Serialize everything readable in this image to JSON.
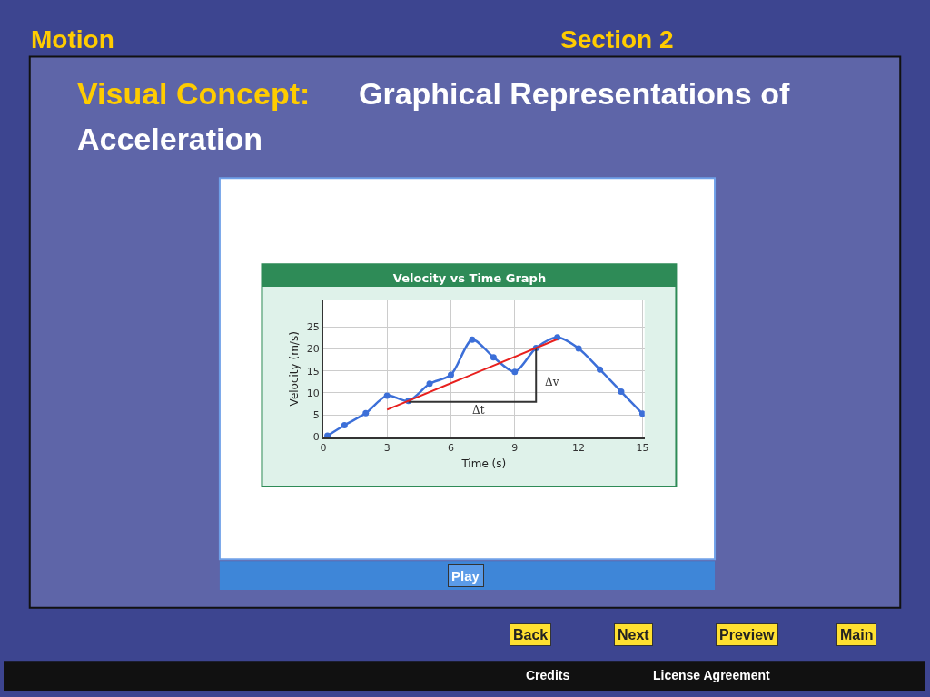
{
  "chart_data": {
    "type": "line",
    "title": "Velocity vs Time Graph",
    "xlabel": "Time (s)",
    "ylabel": "Velocity (m/s)",
    "xlim": [
      0,
      15.1
    ],
    "ylim": [
      0,
      31
    ],
    "xticks": [
      0,
      3,
      6,
      9,
      12,
      15
    ],
    "yticks": [
      0,
      5,
      10,
      15,
      20,
      25
    ],
    "grid": true,
    "series": [
      {
        "color": "#3c6fd8",
        "marker": "circle",
        "x": [
          0.2,
          1,
          2,
          3,
          4,
          5,
          6,
          7,
          8,
          9,
          10,
          11,
          12,
          13,
          14,
          15
        ],
        "values": [
          0.3,
          2.7,
          5.4,
          9.4,
          8.2,
          12.1,
          14.1,
          22.1,
          18.1,
          14.8,
          20.2,
          22.6,
          20.1,
          15.3,
          10.3,
          5.3
        ]
      },
      {
        "color": "#333333",
        "marker": "none",
        "x": [
          4,
          10,
          10
        ],
        "values": [
          8,
          8,
          20.2
        ]
      },
      {
        "color": "#e8201e",
        "marker": "none",
        "x": [
          3,
          11
        ],
        "values": [
          6.2,
          22.2
        ]
      }
    ],
    "annotations": [
      "Δt",
      "Δv",
      "Motion",
      "Section 2",
      "Visual Concept:",
      "Graphical Representations of Acceleration",
      "Play",
      "Back",
      "Next",
      "Preview",
      "Main",
      "Credits",
      "License Agreement"
    ]
  }
}
